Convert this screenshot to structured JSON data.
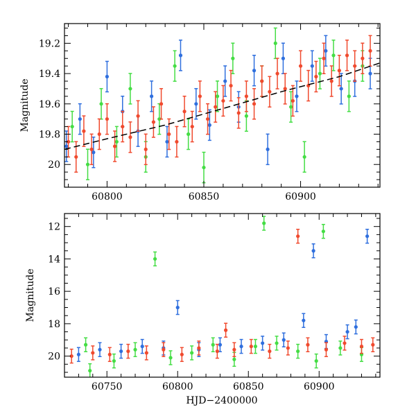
{
  "figure": {
    "xlabel": "HJD−2400000"
  },
  "chart_data": [
    {
      "type": "scatter",
      "title": "",
      "xlabel": "",
      "ylabel": "Magnitude",
      "xlim": [
        60778,
        60941
      ],
      "ylim": [
        20.15,
        19.07
      ],
      "y_inverted": true,
      "xticks": [
        60800,
        60850,
        60900
      ],
      "yticks": [
        19.2,
        19.4,
        19.6,
        19.8,
        20
      ],
      "ytick_labels": [
        "19.2",
        "19.4",
        "19.6",
        "19.8",
        "20"
      ],
      "error_bars": true,
      "trend_line": {
        "style": "dashed",
        "color": "#000000",
        "x": [
          60778,
          60800,
          60830,
          60860,
          60890,
          60920,
          60941
        ],
        "y": [
          19.9,
          19.83,
          19.74,
          19.63,
          19.52,
          19.42,
          19.33
        ]
      },
      "series": [
        {
          "color": "#2f6fde",
          "x": [
            60779,
            60786,
            60793,
            60800,
            60808,
            60816,
            60823,
            60831,
            60838,
            60846,
            60853,
            60861,
            60868,
            60876,
            60883,
            60891,
            60898,
            60906,
            60913,
            60921,
            60928,
            60936
          ],
          "y": [
            19.88,
            19.7,
            19.92,
            19.42,
            19.65,
            19.78,
            19.55,
            19.85,
            19.28,
            19.6,
            19.74,
            19.45,
            19.62,
            19.38,
            19.9,
            19.3,
            19.55,
            19.35,
            19.25,
            19.5,
            19.45,
            19.4
          ]
        },
        {
          "color": "#44dd44",
          "x": [
            60782,
            60790,
            60797,
            60805,
            60812,
            60820,
            60827,
            60835,
            60842,
            60850,
            60857,
            60865,
            60872,
            60880,
            60887,
            60895,
            60902,
            60910,
            60917,
            60925,
            60932
          ],
          "y": [
            19.75,
            20.0,
            19.6,
            19.85,
            19.5,
            19.95,
            19.7,
            19.35,
            19.8,
            20.02,
            19.55,
            19.3,
            19.68,
            19.45,
            19.2,
            19.62,
            19.95,
            19.4,
            19.28,
            19.55,
            19.35
          ]
        },
        {
          "color": "#f04a2e",
          "x": [
            60780,
            60784,
            60788,
            60792,
            60796,
            60800,
            60804,
            60808,
            60812,
            60816,
            60820,
            60824,
            60828,
            60832,
            60836,
            60840,
            60844,
            60848,
            60852,
            60856,
            60860,
            60864,
            60868,
            60872,
            60876,
            60880,
            60884,
            60888,
            60892,
            60896,
            60900,
            60904,
            60908,
            60912,
            60916,
            60920,
            60924,
            60928,
            60932,
            60936
          ],
          "y": [
            19.85,
            19.95,
            19.78,
            19.9,
            19.8,
            19.7,
            19.88,
            19.75,
            19.82,
            19.68,
            19.9,
            19.72,
            19.6,
            19.8,
            19.85,
            19.65,
            19.75,
            19.55,
            19.7,
            19.62,
            19.58,
            19.48,
            19.66,
            19.55,
            19.6,
            19.45,
            19.52,
            19.4,
            19.5,
            19.58,
            19.35,
            19.48,
            19.42,
            19.3,
            19.45,
            19.38,
            19.28,
            19.35,
            19.3,
            19.25
          ]
        }
      ]
    },
    {
      "type": "scatter",
      "title": "",
      "xlabel": "HJD−2400000",
      "ylabel": "Magnitude",
      "xlim": [
        60720,
        60943
      ],
      "ylim": [
        21.3,
        11.2
      ],
      "y_inverted": true,
      "xticks": [
        60750,
        60800,
        60850,
        60900
      ],
      "yticks": [
        12,
        14,
        16,
        18,
        20
      ],
      "ytick_labels": [
        "12",
        "14",
        "16",
        "18",
        "20"
      ],
      "error_bars": true,
      "series": [
        {
          "color": "#2f6fde",
          "x": [
            60730,
            60745,
            60760,
            60775,
            60790,
            60800,
            60815,
            60830,
            60845,
            60860,
            60875,
            60889,
            60896,
            60905,
            60920,
            60926,
            60934
          ],
          "y": [
            19.9,
            19.6,
            19.7,
            19.4,
            19.5,
            17.0,
            19.6,
            19.3,
            19.4,
            19.2,
            19.0,
            17.8,
            13.5,
            19.1,
            18.5,
            18.2,
            12.6
          ]
        },
        {
          "color": "#44dd44",
          "x": [
            60735,
            60738,
            60755,
            60770,
            60784,
            60795,
            60810,
            60825,
            60840,
            60855,
            60861,
            60870,
            60885,
            60898,
            60903,
            60915,
            60930
          ],
          "y": [
            19.3,
            20.9,
            20.3,
            19.6,
            14.0,
            20.1,
            19.8,
            19.3,
            20.2,
            19.4,
            11.8,
            19.2,
            19.7,
            20.3,
            12.3,
            19.5,
            19.9
          ]
        },
        {
          "color": "#f04a2e",
          "x": [
            60725,
            60740,
            60752,
            60765,
            60778,
            60790,
            60803,
            60815,
            60828,
            60834,
            60840,
            60852,
            60865,
            60878,
            60885,
            60892,
            60905,
            60918,
            60930,
            60938
          ],
          "y": [
            20.0,
            19.8,
            19.9,
            19.7,
            19.8,
            19.6,
            19.9,
            19.5,
            19.7,
            18.4,
            19.6,
            19.4,
            19.7,
            19.5,
            12.6,
            19.3,
            19.6,
            19.2,
            19.4,
            19.3
          ]
        }
      ]
    }
  ]
}
